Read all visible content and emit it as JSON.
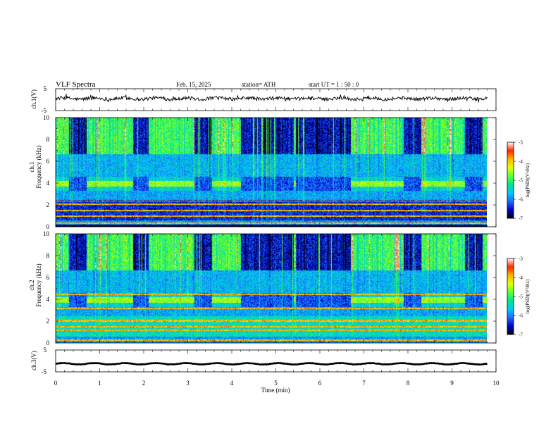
{
  "header": {
    "title": "VLF  Spectra",
    "date": "Feb. 15, 2025",
    "station": "station= ATH",
    "start_ut": "start  UT  =   1 : 50 : 0"
  },
  "colors": {
    "colormap": [
      "#000000",
      "#0000c8",
      "#1e6cff",
      "#00c8ff",
      "#00e68c",
      "#5aff3c",
      "#e6ff00",
      "#ffb400",
      "#ff2800",
      "#ffffff"
    ]
  },
  "chart_data": [
    {
      "type": "line",
      "panel": "ch1-waveform",
      "ylabel": "ch.1(V)",
      "ylim": [
        -5,
        5
      ],
      "yticks": [
        "5",
        "-5"
      ],
      "x_range": [
        0,
        9.8
      ],
      "baseline_volts": 0.5,
      "noise_volts": 0.8
    },
    {
      "type": "heatmap",
      "panel": "ch1-spectrogram",
      "ylabel": "ch.1\nFrequency  (kHz)",
      "ylim": [
        0,
        10
      ],
      "yticks": [
        "0",
        "2",
        "4",
        "6",
        "8",
        "10"
      ],
      "x_range": [
        0,
        9.8
      ],
      "colorbar": {
        "label": "log(PSD)(V²/Hz)",
        "range": [
          -7,
          -3
        ],
        "ticks": [
          "-3",
          "-4",
          "-5",
          "-6",
          "-7"
        ]
      },
      "bursts_min": [
        [
          0.3,
          0.7
        ],
        [
          1.75,
          2.1
        ],
        [
          3.15,
          3.55
        ],
        [
          4.2,
          5.4
        ],
        [
          5.45,
          6.7
        ],
        [
          7.9,
          8.3
        ],
        [
          9.3,
          9.7
        ]
      ],
      "strong_lines_khz": [
        0.2,
        0.35,
        1.0,
        1.5,
        2.1,
        2.4
      ]
    },
    {
      "type": "heatmap",
      "panel": "ch2-spectrogram",
      "ylabel": "ch.2\nFrequency  (kHz)",
      "ylim": [
        0,
        10
      ],
      "yticks": [
        "0",
        "2",
        "4",
        "6",
        "8",
        "10"
      ],
      "x_range": [
        0,
        9.8
      ],
      "colorbar": {
        "label": "log(PSD)(V²/Hz)",
        "range": [
          -7,
          -3
        ],
        "ticks": [
          "-3",
          "-4",
          "-5",
          "-6",
          "-7"
        ]
      },
      "bursts_min": [
        [
          0.3,
          0.7
        ],
        [
          1.75,
          2.1
        ],
        [
          3.15,
          3.55
        ],
        [
          4.2,
          5.4
        ],
        [
          5.45,
          6.7
        ],
        [
          7.9,
          8.3
        ],
        [
          9.3,
          9.7
        ]
      ],
      "strong_lines_khz": [
        0.3,
        1.2,
        1.5,
        2.0,
        2.1,
        3.2,
        4.5
      ]
    },
    {
      "type": "line",
      "panel": "ch3-waveform",
      "ylabel": "ch.3(V)",
      "ylim": [
        -5,
        5
      ],
      "yticks": [
        "5",
        "-5"
      ],
      "x_range": [
        0,
        9.8
      ],
      "baseline_volts": -1.3,
      "noise_volts": 0.1
    }
  ],
  "x_axis": {
    "label": "Time  (min)",
    "range": [
      0,
      10
    ],
    "ticks": [
      "0",
      "1",
      "2",
      "3",
      "4",
      "5",
      "6",
      "7",
      "8",
      "9",
      "10"
    ]
  }
}
